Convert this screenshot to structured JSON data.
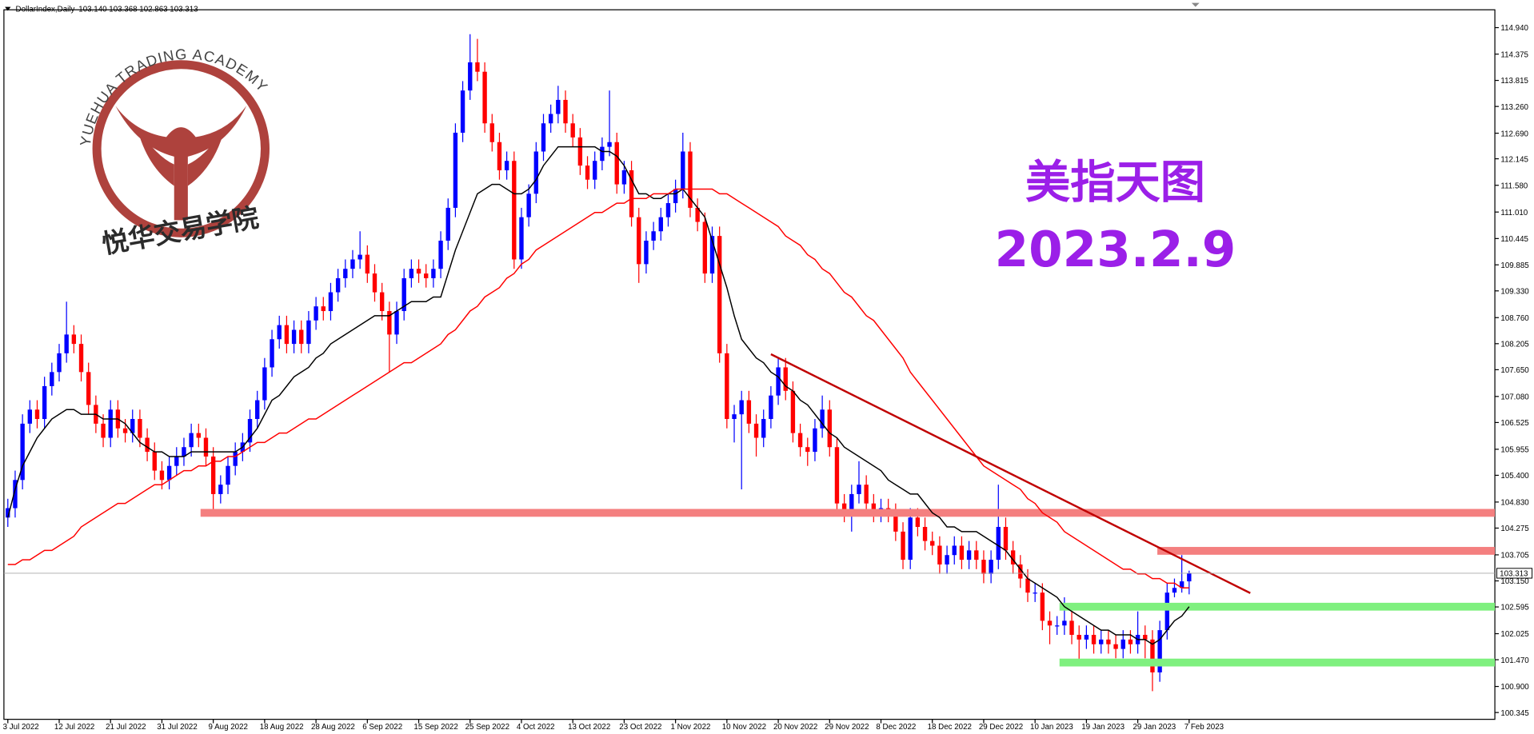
{
  "chart_data": {
    "type": "candlestick",
    "title": "DollarIndex,Daily",
    "ohlc_text": "103.140 103.368 102.863 103.313",
    "annotation_title": "美指天图",
    "annotation_date": "2023.2.9",
    "logo_arc_text": "YUEHUA TRADING ACADEMY",
    "logo_name": "悦华交易学院",
    "up_color": "#0000ff",
    "down_color": "#ff0000",
    "ylim": [
      100.2,
      115.32
    ],
    "yticks": [
      {
        "value": 114.94,
        "label": "114.940"
      },
      114.375,
      113.815,
      {
        "value": 113.26,
        "label": "113.260"
      },
      {
        "value": 112.69,
        "label": "112.690"
      },
      112.145,
      {
        "value": 111.58,
        "label": "111.580"
      },
      {
        "value": 111.01,
        "label": "111.010"
      },
      110.445,
      109.885,
      {
        "value": 109.33,
        "label": "109.330"
      },
      {
        "value": 108.76,
        "label": "108.760"
      },
      108.205,
      {
        "value": 107.65,
        "label": "107.650"
      },
      {
        "value": 107.08,
        "label": "107.080"
      },
      106.525,
      105.955,
      {
        "value": 105.4,
        "label": "105.400"
      },
      {
        "value": 104.83,
        "label": "104.830"
      },
      104.275,
      103.705,
      {
        "value": 103.15,
        "label": "103.150"
      },
      102.595,
      102.025,
      {
        "value": 101.47,
        "label": "101.470"
      },
      {
        "value": 100.9,
        "label": "100.900"
      },
      100.345
    ],
    "categories": [
      "3 Jul 2022",
      null,
      null,
      null,
      null,
      null,
      null,
      "12 Jul 2022",
      null,
      null,
      null,
      null,
      null,
      null,
      "21 Jul 2022",
      null,
      null,
      null,
      null,
      null,
      null,
      "31 Jul 2022",
      null,
      null,
      null,
      null,
      null,
      null,
      "9 Aug 2022",
      null,
      null,
      null,
      null,
      null,
      null,
      "18 Aug 2022",
      null,
      null,
      null,
      null,
      null,
      null,
      "28 Aug 2022",
      null,
      null,
      null,
      null,
      null,
      null,
      "6 Sep 2022",
      null,
      null,
      null,
      null,
      null,
      null,
      "15 Sep 2022",
      null,
      null,
      null,
      null,
      null,
      null,
      "25 Sep 2022",
      null,
      null,
      null,
      null,
      null,
      null,
      "4 Oct 2022",
      null,
      null,
      null,
      null,
      null,
      null,
      "13 Oct 2022",
      null,
      null,
      null,
      null,
      null,
      null,
      "23 Oct 2022",
      null,
      null,
      null,
      null,
      null,
      null,
      "1 Nov 2022",
      null,
      null,
      null,
      null,
      null,
      null,
      "10 Nov 2022",
      null,
      null,
      null,
      null,
      null,
      null,
      "20 Nov 2022",
      null,
      null,
      null,
      null,
      null,
      null,
      "29 Nov 2022",
      null,
      null,
      null,
      null,
      null,
      null,
      "8 Dec 2022",
      null,
      null,
      null,
      null,
      null,
      null,
      "18 Dec 2022",
      null,
      null,
      null,
      null,
      null,
      null,
      "29 Dec 2022",
      null,
      null,
      null,
      null,
      null,
      null,
      "10 Jan 2023",
      null,
      null,
      null,
      null,
      null,
      null,
      "19 Jan 2023",
      null,
      null,
      null,
      null,
      null,
      null,
      "29 Jan 2023",
      null,
      null,
      null,
      null,
      null,
      null,
      "7 Feb 2023"
    ],
    "open": [
      104.5,
      104.7,
      105.3,
      106.5,
      106.8,
      106.6,
      107.3,
      107.6,
      108.0,
      108.4,
      108.2,
      107.6,
      106.9,
      106.5,
      106.2,
      106.8,
      106.4,
      106.3,
      106.6,
      106.2,
      105.9,
      105.5,
      105.3,
      105.6,
      105.8,
      106.0,
      106.3,
      106.2,
      105.8,
      105.0,
      105.2,
      105.6,
      105.9,
      106.1,
      106.6,
      107.0,
      107.7,
      108.3,
      108.6,
      108.2,
      108.5,
      108.2,
      108.7,
      109.0,
      108.9,
      109.3,
      109.6,
      109.8,
      110.0,
      110.1,
      109.7,
      109.3,
      108.9,
      108.4,
      108.9,
      109.6,
      109.8,
      109.7,
      109.6,
      109.8,
      110.4,
      111.1,
      112.7,
      113.6,
      114.2,
      114.0,
      112.9,
      112.5,
      111.9,
      112.1,
      110.0,
      110.9,
      111.4,
      112.3,
      112.9,
      113.1,
      113.4,
      112.9,
      112.6,
      112.0,
      111.7,
      112.1,
      112.4,
      112.5,
      111.6,
      111.9,
      110.9,
      109.9,
      110.4,
      110.6,
      110.9,
      111.2,
      111.5,
      112.3,
      111.1,
      110.8,
      109.7,
      110.5,
      108.0,
      106.6,
      106.7,
      107.0,
      106.5,
      106.2,
      106.6,
      107.1,
      107.7,
      107.2,
      106.3,
      106.0,
      105.9,
      106.4,
      106.8,
      106.0,
      104.8,
      104.6,
      105.0,
      105.2,
      104.8,
      104.6,
      104.7,
      104.6,
      104.2,
      103.6,
      104.5,
      104.3,
      104.0,
      103.9,
      103.5,
      103.7,
      103.9,
      103.6,
      103.8,
      103.6,
      103.3,
      103.6,
      104.3,
      103.8,
      103.5,
      103.2,
      102.9,
      102.9,
      102.3,
      102.2,
      102.2,
      102.3,
      102.0,
      101.9,
      102.0,
      101.8,
      101.9,
      101.8,
      101.7,
      101.9,
      101.8,
      102.0,
      101.9,
      101.2,
      102.1,
      102.9,
      103.0,
      103.14
    ],
    "high": [
      104.9,
      105.5,
      106.7,
      107.0,
      107.0,
      107.5,
      107.8,
      108.2,
      109.1,
      108.6,
      108.4,
      107.8,
      107.1,
      106.7,
      107.0,
      107.0,
      106.6,
      106.8,
      106.8,
      106.4,
      106.1,
      105.7,
      105.8,
      106.0,
      106.2,
      106.5,
      106.5,
      106.4,
      106.0,
      105.4,
      105.8,
      106.1,
      106.3,
      106.8,
      107.2,
      107.9,
      108.5,
      108.8,
      108.8,
      108.7,
      108.7,
      108.9,
      109.2,
      109.2,
      109.5,
      109.8,
      110.0,
      110.2,
      110.6,
      110.3,
      109.9,
      109.5,
      109.1,
      109.1,
      109.8,
      110.0,
      110.0,
      109.9,
      110.0,
      110.6,
      111.3,
      112.9,
      113.8,
      114.8,
      114.7,
      114.2,
      113.1,
      112.7,
      112.3,
      112.3,
      111.1,
      111.6,
      112.5,
      113.1,
      113.3,
      113.7,
      113.6,
      113.1,
      112.8,
      112.2,
      112.3,
      112.6,
      113.6,
      112.7,
      112.1,
      112.1,
      111.1,
      110.6,
      110.8,
      111.1,
      111.4,
      111.7,
      112.7,
      112.5,
      111.3,
      111.0,
      110.7,
      110.7,
      108.2,
      106.9,
      107.2,
      107.2,
      106.7,
      106.8,
      107.3,
      107.9,
      107.9,
      107.4,
      106.5,
      106.2,
      106.6,
      107.1,
      107.0,
      106.2,
      105.0,
      105.2,
      105.7,
      105.4,
      105.0,
      104.9,
      104.9,
      104.8,
      104.4,
      104.7,
      104.7,
      104.5,
      104.2,
      104.1,
      103.9,
      104.1,
      104.1,
      104.0,
      104.0,
      103.8,
      103.8,
      105.2,
      104.5,
      104.0,
      103.7,
      103.4,
      103.1,
      103.1,
      102.5,
      102.4,
      102.8,
      102.5,
      102.2,
      102.2,
      102.2,
      102.1,
      102.1,
      102.0,
      102.1,
      102.1,
      102.5,
      102.2,
      102.1,
      102.3,
      103.1,
      103.2,
      103.7,
      103.368
    ],
    "low": [
      104.3,
      104.5,
      105.1,
      106.3,
      106.4,
      106.4,
      107.1,
      107.4,
      107.8,
      108.0,
      107.4,
      106.7,
      106.3,
      106.0,
      106.0,
      106.2,
      106.1,
      106.1,
      106.0,
      105.7,
      105.3,
      105.1,
      105.1,
      105.4,
      105.6,
      105.8,
      106.0,
      105.6,
      104.6,
      104.8,
      105.0,
      105.4,
      105.7,
      105.9,
      106.4,
      106.8,
      107.5,
      108.1,
      108.0,
      108.0,
      108.0,
      108.0,
      108.5,
      108.7,
      108.7,
      109.1,
      109.4,
      109.6,
      109.8,
      109.5,
      109.1,
      108.7,
      107.6,
      108.2,
      108.7,
      109.4,
      109.5,
      109.4,
      109.4,
      109.6,
      110.2,
      110.9,
      112.5,
      113.4,
      113.8,
      112.7,
      112.3,
      111.7,
      111.7,
      109.8,
      109.8,
      110.7,
      111.2,
      112.1,
      112.7,
      112.9,
      112.7,
      112.4,
      111.8,
      111.5,
      111.5,
      111.9,
      112.2,
      111.4,
      111.4,
      110.7,
      109.5,
      109.7,
      110.2,
      110.4,
      110.7,
      111.0,
      111.3,
      110.9,
      110.6,
      109.5,
      109.5,
      107.8,
      106.4,
      106.1,
      105.1,
      106.3,
      105.8,
      106.0,
      106.4,
      106.9,
      107.0,
      106.1,
      105.8,
      105.6,
      105.7,
      106.2,
      105.8,
      104.6,
      104.4,
      104.2,
      104.8,
      104.6,
      104.4,
      104.4,
      104.4,
      104.0,
      103.4,
      103.4,
      104.1,
      103.8,
      103.7,
      103.3,
      103.3,
      103.5,
      103.4,
      103.4,
      103.4,
      103.1,
      103.1,
      103.4,
      103.6,
      103.3,
      103.0,
      102.7,
      102.7,
      102.1,
      101.8,
      102.0,
      102.0,
      101.8,
      101.4,
      101.7,
      101.6,
      101.6,
      101.6,
      101.5,
      101.5,
      101.6,
      101.6,
      101.5,
      100.8,
      101.0,
      101.9,
      102.8,
      102.9,
      102.863
    ],
    "close": [
      104.7,
      105.3,
      106.5,
      106.8,
      106.6,
      107.3,
      107.6,
      108.0,
      108.4,
      108.2,
      107.6,
      106.9,
      106.5,
      106.2,
      106.8,
      106.4,
      106.3,
      106.6,
      106.2,
      105.9,
      105.5,
      105.3,
      105.6,
      105.8,
      106.0,
      106.3,
      106.2,
      105.8,
      105.0,
      105.2,
      105.6,
      105.9,
      106.1,
      106.6,
      107.0,
      107.7,
      108.3,
      108.6,
      108.2,
      108.5,
      108.2,
      108.7,
      109.0,
      108.9,
      109.3,
      109.6,
      109.8,
      110.0,
      110.1,
      109.7,
      109.3,
      108.9,
      108.4,
      108.9,
      109.6,
      109.8,
      109.7,
      109.6,
      109.8,
      110.4,
      111.1,
      112.7,
      113.6,
      114.2,
      114.0,
      112.9,
      112.5,
      111.9,
      112.1,
      110.0,
      110.9,
      111.4,
      112.3,
      112.9,
      113.1,
      113.4,
      112.9,
      112.6,
      112.0,
      111.7,
      112.1,
      112.4,
      112.5,
      111.6,
      111.9,
      110.9,
      109.9,
      110.4,
      110.6,
      110.9,
      111.2,
      111.5,
      112.3,
      111.1,
      110.8,
      109.7,
      110.5,
      108.0,
      106.6,
      106.7,
      107.0,
      106.5,
      106.2,
      106.6,
      107.1,
      107.7,
      107.2,
      106.3,
      106.0,
      105.9,
      106.4,
      106.8,
      106.0,
      104.8,
      104.6,
      105.0,
      105.2,
      104.8,
      104.6,
      104.7,
      104.6,
      104.2,
      103.6,
      104.5,
      104.3,
      104.0,
      103.9,
      103.5,
      103.7,
      103.9,
      103.6,
      103.8,
      103.6,
      103.3,
      103.6,
      104.3,
      103.8,
      103.5,
      103.2,
      102.9,
      102.9,
      102.3,
      102.2,
      102.2,
      102.3,
      102.0,
      101.9,
      102.0,
      101.8,
      101.9,
      101.8,
      101.7,
      101.9,
      101.8,
      102.0,
      101.9,
      101.2,
      102.1,
      102.9,
      103.0,
      103.14,
      103.313
    ],
    "series": [
      {
        "color": "#000000",
        "values": [
          104.5,
          105.1,
          105.6,
          105.9,
          106.2,
          106.4,
          106.6,
          106.7,
          106.8,
          106.8,
          106.7,
          106.7,
          106.7,
          106.6,
          106.6,
          106.6,
          106.5,
          106.3,
          106.1,
          106.0,
          105.9,
          105.9,
          105.8,
          105.8,
          105.8,
          105.9,
          105.9,
          105.9,
          105.9,
          105.9,
          105.9,
          105.9,
          106.0,
          106.2,
          106.4,
          106.7,
          107.0,
          107.1,
          107.3,
          107.5,
          107.6,
          107.7,
          107.9,
          108.0,
          108.2,
          108.3,
          108.4,
          108.5,
          108.6,
          108.7,
          108.8,
          108.8,
          108.8,
          108.9,
          109.0,
          109.1,
          109.1,
          109.1,
          109.2,
          109.2,
          109.7,
          110.2,
          110.6,
          111.0,
          111.4,
          111.5,
          111.6,
          111.6,
          111.5,
          111.4,
          111.4,
          111.5,
          111.7,
          112.0,
          112.2,
          112.4,
          112.4,
          112.4,
          112.4,
          112.4,
          112.4,
          112.3,
          112.3,
          112.2,
          112.0,
          111.7,
          111.4,
          111.4,
          111.3,
          111.3,
          111.4,
          111.4,
          111.5,
          111.3,
          111.1,
          110.9,
          110.4,
          109.9,
          109.4,
          108.8,
          108.3,
          108.1,
          107.9,
          107.8,
          107.6,
          107.5,
          107.3,
          107.2,
          107.0,
          106.9,
          106.7,
          106.5,
          106.3,
          106.2,
          106.0,
          105.9,
          105.8,
          105.7,
          105.6,
          105.5,
          105.3,
          105.2,
          105.1,
          105.0,
          105.0,
          104.8,
          104.6,
          104.5,
          104.3,
          104.3,
          104.2,
          104.2,
          104.2,
          104.1,
          104.0,
          103.9,
          103.8,
          103.6,
          103.4,
          103.2,
          103.1,
          103.0,
          102.9,
          102.8,
          102.6,
          102.5,
          102.4,
          102.3,
          102.2,
          102.1,
          102.1,
          102.0,
          102.0,
          102.0,
          101.9,
          101.9,
          101.8,
          101.9,
          102.1,
          102.3,
          102.4,
          102.6
        ]
      },
      {
        "color": "#ff0000",
        "values": [
          103.5,
          103.5,
          103.6,
          103.6,
          103.7,
          103.8,
          103.8,
          103.9,
          104.0,
          104.1,
          104.3,
          104.4,
          104.5,
          104.6,
          104.7,
          104.8,
          104.8,
          104.9,
          105.0,
          105.1,
          105.2,
          105.2,
          105.3,
          105.4,
          105.5,
          105.5,
          105.6,
          105.6,
          105.7,
          105.7,
          105.8,
          105.8,
          105.9,
          106.0,
          106.1,
          106.1,
          106.2,
          106.3,
          106.3,
          106.4,
          106.5,
          106.6,
          106.6,
          106.7,
          106.8,
          106.9,
          107.0,
          107.1,
          107.2,
          107.3,
          107.4,
          107.5,
          107.6,
          107.7,
          107.8,
          107.8,
          107.9,
          108.0,
          108.1,
          108.2,
          108.4,
          108.5,
          108.7,
          108.9,
          109.0,
          109.2,
          109.3,
          109.4,
          109.6,
          109.7,
          109.9,
          110.0,
          110.2,
          110.3,
          110.4,
          110.5,
          110.6,
          110.7,
          110.8,
          110.9,
          111.0,
          111.0,
          111.1,
          111.2,
          111.2,
          111.3,
          111.3,
          111.3,
          111.4,
          111.4,
          111.4,
          111.5,
          111.5,
          111.5,
          111.5,
          111.5,
          111.5,
          111.4,
          111.4,
          111.3,
          111.2,
          111.1,
          111.0,
          110.9,
          110.8,
          110.7,
          110.5,
          110.4,
          110.3,
          110.1,
          110.0,
          109.8,
          109.7,
          109.5,
          109.3,
          109.2,
          109.0,
          108.8,
          108.7,
          108.5,
          108.3,
          108.1,
          107.9,
          107.6,
          107.4,
          107.2,
          107.0,
          106.8,
          106.6,
          106.4,
          106.2,
          106.0,
          105.8,
          105.6,
          105.5,
          105.4,
          105.3,
          105.2,
          105.1,
          104.9,
          104.8,
          104.6,
          104.5,
          104.4,
          104.2,
          104.1,
          104.0,
          103.9,
          103.8,
          103.7,
          103.6,
          103.5,
          103.4,
          103.4,
          103.3,
          103.3,
          103.2,
          103.2,
          103.1,
          103.1,
          103.0,
          103.0
        ]
      }
    ],
    "levels": [
      {
        "value": 104.6,
        "color": "#f47f7f"
      },
      {
        "value": 103.79,
        "color": "#f47f7f"
      },
      {
        "value": 102.6,
        "color": "#7ff07f"
      },
      {
        "value": 101.41,
        "color": "#7ff07f"
      }
    ],
    "trendline": {
      "values": [
        107.98,
        102.89
      ],
      "color": "#c00000"
    }
  }
}
